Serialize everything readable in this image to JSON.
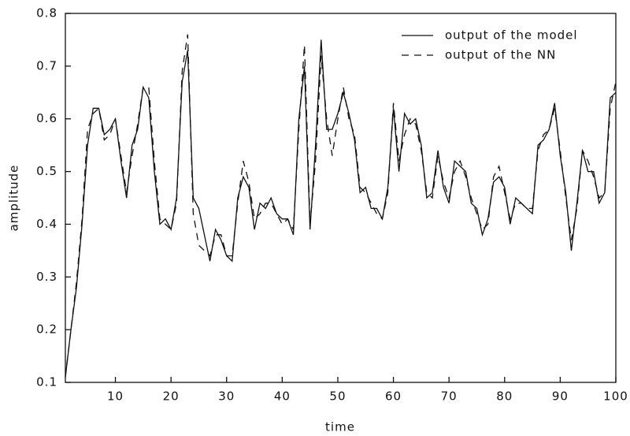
{
  "chart_data": {
    "type": "line",
    "x_label": "time",
    "y_label": "amplitude",
    "x": [
      1,
      2,
      3,
      4,
      5,
      6,
      7,
      8,
      9,
      10,
      11,
      12,
      13,
      14,
      15,
      16,
      17,
      18,
      19,
      20,
      21,
      22,
      23,
      24,
      25,
      26,
      27,
      28,
      29,
      30,
      31,
      32,
      33,
      34,
      35,
      36,
      37,
      38,
      39,
      40,
      41,
      42,
      43,
      44,
      45,
      46,
      47,
      48,
      49,
      50,
      51,
      52,
      53,
      54,
      55,
      56,
      57,
      58,
      59,
      60,
      61,
      62,
      63,
      64,
      65,
      66,
      67,
      68,
      69,
      70,
      71,
      72,
      73,
      74,
      75,
      76,
      77,
      78,
      79,
      80,
      81,
      82,
      83,
      84,
      85,
      86,
      87,
      88,
      89,
      90,
      91,
      92,
      93,
      94,
      95,
      96,
      97,
      98,
      99,
      100
    ],
    "series": [
      {
        "name": "output of the model",
        "color": "#111111",
        "dash": "none",
        "values": [
          0.11,
          0.2,
          0.28,
          0.4,
          0.55,
          0.62,
          0.62,
          0.57,
          0.58,
          0.6,
          0.52,
          0.45,
          0.55,
          0.58,
          0.66,
          0.64,
          0.5,
          0.4,
          0.41,
          0.39,
          0.45,
          0.67,
          0.73,
          0.45,
          0.43,
          0.38,
          0.33,
          0.39,
          0.37,
          0.34,
          0.33,
          0.45,
          0.49,
          0.47,
          0.39,
          0.44,
          0.43,
          0.45,
          0.42,
          0.41,
          0.41,
          0.38,
          0.6,
          0.7,
          0.39,
          0.55,
          0.75,
          0.58,
          0.58,
          0.61,
          0.65,
          0.61,
          0.56,
          0.46,
          0.47,
          0.43,
          0.43,
          0.41,
          0.47,
          0.62,
          0.5,
          0.61,
          0.59,
          0.6,
          0.55,
          0.45,
          0.46,
          0.54,
          0.47,
          0.44,
          0.52,
          0.51,
          0.5,
          0.44,
          0.43,
          0.38,
          0.41,
          0.48,
          0.49,
          0.47,
          0.4,
          0.45,
          0.44,
          0.43,
          0.42,
          0.55,
          0.56,
          0.58,
          0.63,
          0.53,
          0.46,
          0.35,
          0.44,
          0.54,
          0.5,
          0.5,
          0.44,
          0.46,
          0.64,
          0.65
        ]
      },
      {
        "name": "output of the NN",
        "color": "#111111",
        "dash": "9 7",
        "values": [
          0.11,
          0.2,
          0.29,
          0.41,
          0.58,
          0.61,
          0.62,
          0.56,
          0.57,
          0.6,
          0.53,
          0.46,
          0.53,
          0.59,
          0.66,
          0.66,
          0.52,
          0.41,
          0.4,
          0.39,
          0.44,
          0.69,
          0.76,
          0.42,
          0.36,
          0.35,
          0.34,
          0.38,
          0.38,
          0.34,
          0.34,
          0.44,
          0.52,
          0.48,
          0.41,
          0.42,
          0.44,
          0.44,
          0.42,
          0.4,
          0.41,
          0.39,
          0.58,
          0.74,
          0.4,
          0.52,
          0.72,
          0.6,
          0.53,
          0.6,
          0.66,
          0.6,
          0.57,
          0.47,
          0.46,
          0.44,
          0.42,
          0.41,
          0.46,
          0.63,
          0.52,
          0.57,
          0.6,
          0.59,
          0.54,
          0.46,
          0.45,
          0.53,
          0.48,
          0.45,
          0.5,
          0.52,
          0.49,
          0.45,
          0.42,
          0.39,
          0.4,
          0.49,
          0.51,
          0.46,
          0.41,
          0.44,
          0.44,
          0.43,
          0.43,
          0.54,
          0.57,
          0.58,
          0.62,
          0.54,
          0.45,
          0.37,
          0.43,
          0.54,
          0.52,
          0.49,
          0.45,
          0.46,
          0.62,
          0.67
        ]
      }
    ],
    "xlim": [
      1,
      100
    ],
    "xticks": [
      10,
      20,
      30,
      40,
      50,
      60,
      70,
      80,
      90,
      100
    ],
    "ylim": [
      0.1,
      0.8
    ],
    "yticks": [
      0.1,
      0.2,
      0.3,
      0.4,
      0.5,
      0.6,
      0.7,
      0.8
    ],
    "legend": "upper right"
  }
}
